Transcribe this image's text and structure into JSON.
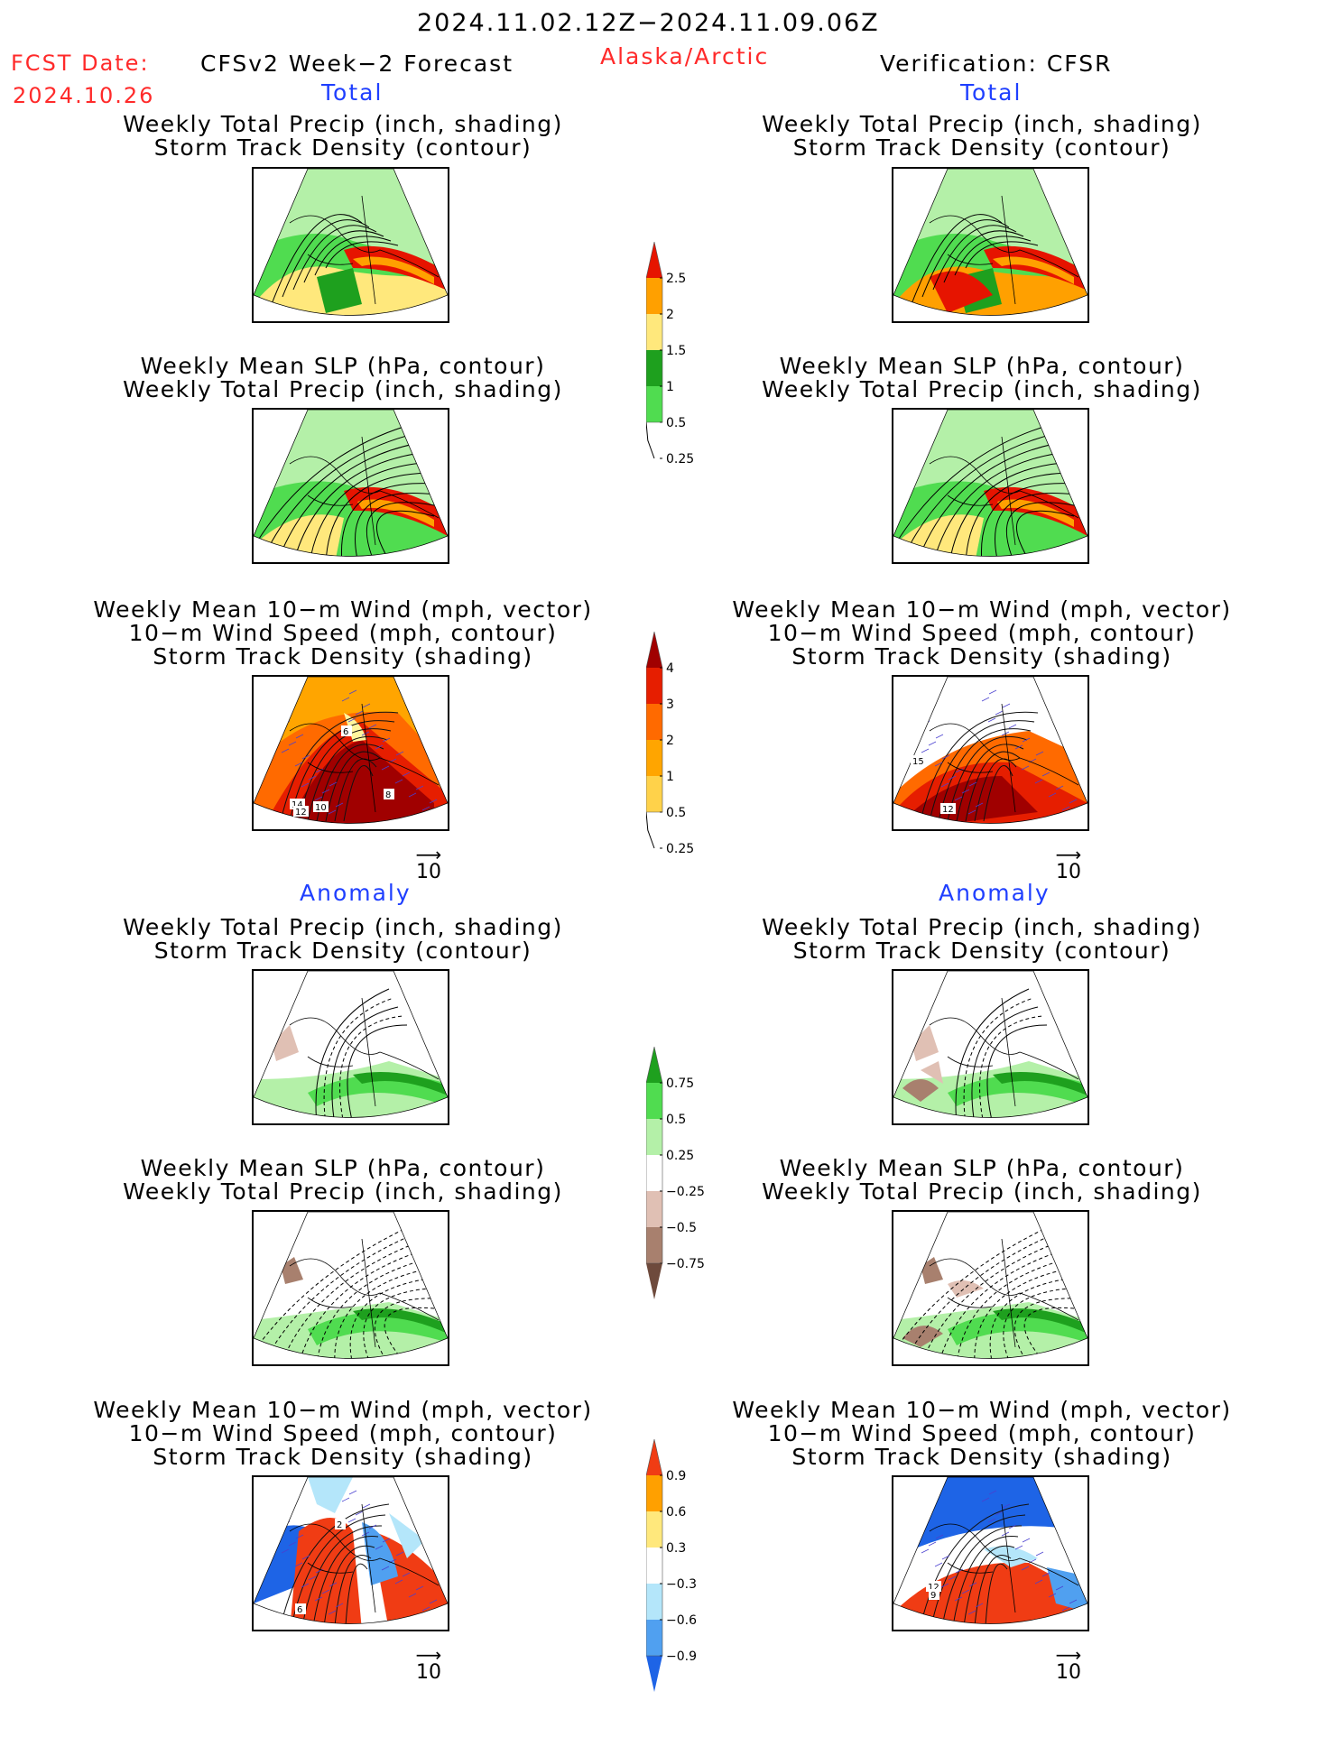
{
  "header": {
    "period": "2024.11.02.12Z−2024.11.09.06Z",
    "fcst_label": "FCST Date:",
    "fcst_date": "2024.10.26",
    "model": "CFSv2 Week−2 Forecast",
    "region": "Alaska/Arctic",
    "verification": "Verification: CFSR"
  },
  "sections": {
    "total": "Total",
    "anomaly": "Anomaly"
  },
  "titles": {
    "precip_storm": [
      "Weekly Total Precip (inch, shading)",
      "Storm Track Density (contour)"
    ],
    "slp_precip": [
      "Weekly Mean SLP (hPa, contour)",
      "Weekly Total Precip (inch, shading)"
    ],
    "wind_storm": [
      "Weekly Mean 10−m Wind (mph, vector)",
      "10−m Wind Speed (mph, contour)",
      "Storm Track Density (shading)"
    ]
  },
  "vector_ref": "10",
  "chart_data": [
    {
      "type": "heatmap",
      "name": "Total precip colorbar",
      "levels": [
        "0.25",
        "0.5",
        "1",
        "1.5",
        "2",
        "2.5"
      ],
      "colors": [
        "#b4f0a8",
        "#50dc50",
        "#1ea01e",
        "#ffe87c",
        "#ffa000",
        "#e61400"
      ]
    },
    {
      "type": "heatmap",
      "name": "Storm track density colorbar",
      "levels": [
        "0.25",
        "0.5",
        "1",
        "2",
        "3",
        "4"
      ],
      "colors": [
        "#fff59d",
        "#ffd24a",
        "#ffa500",
        "#ff6a00",
        "#e61e00",
        "#a00000"
      ]
    },
    {
      "type": "heatmap",
      "name": "Precip anomaly colorbar",
      "levels": [
        "−0.75",
        "−0.5",
        "−0.25",
        "0.25",
        "0.5",
        "0.75"
      ],
      "colors": [
        "#6e4a3c",
        "#a8806e",
        "#e0c0b4",
        "#ffffff",
        "#b4f0a8",
        "#50dc50",
        "#1ea01e"
      ]
    },
    {
      "type": "heatmap",
      "name": "Storm track density anomaly colorbar",
      "levels": [
        "−0.9",
        "−0.6",
        "−0.3",
        "0.3",
        "0.6",
        "0.9"
      ],
      "colors": [
        "#1e64e6",
        "#50a0f0",
        "#b4e6fa",
        "#ffffff",
        "#ffe87c",
        "#ffa000",
        "#f03c14"
      ]
    }
  ],
  "contour_labels": {
    "wind_total_fcst": [
      "6",
      "14",
      "12",
      "10",
      "8"
    ],
    "wind_total_obs": [
      "15",
      "12"
    ],
    "wind_anom_fcst": [
      "2",
      "6"
    ],
    "wind_anom_obs": [
      "12",
      "9"
    ]
  }
}
